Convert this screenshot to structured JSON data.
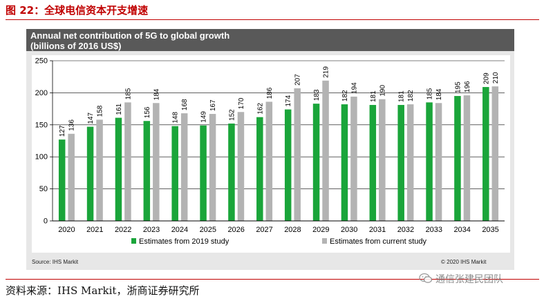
{
  "figure": {
    "title": "图 22：全球电信资本开支增速",
    "source": "资料来源：IHS Markit，浙商证券研究所",
    "watermark": "通信张建民团队"
  },
  "panel": {
    "title_line1": "Annual net contribution of 5G to global growth",
    "title_line2": "(billions of 2016 US$)",
    "source": "Source: IHS Markit",
    "copyright": "© 2020 IHS Markit"
  },
  "colors": {
    "series_2019": "#1aa53a",
    "series_current": "#b3b3b3",
    "header_bg": "#595959",
    "title_red": "#c00000"
  },
  "chart_data": {
    "type": "bar",
    "title": "Annual net contribution of 5G to global growth (billions of 2016 US$)",
    "xlabel": "",
    "ylabel": "",
    "ylim": [
      0,
      250
    ],
    "yticks": [
      0,
      50,
      100,
      150,
      200,
      250
    ],
    "grid": true,
    "legend_position": "bottom",
    "categories": [
      "2020",
      "2021",
      "2022",
      "2023",
      "2024",
      "2025",
      "2026",
      "2027",
      "2028",
      "2029",
      "2030",
      "2031",
      "2032",
      "2033",
      "2034",
      "2035"
    ],
    "series": [
      {
        "name": "Estimates from 2019 study",
        "values": [
          127,
          147,
          161,
          156,
          148,
          149,
          152,
          162,
          174,
          183,
          182,
          181,
          181,
          185,
          195,
          209
        ],
        "labels": [
          "127",
          "147",
          "161",
          "156",
          "148",
          "149",
          "152",
          "162",
          "174",
          "183",
          "182",
          "181",
          "181",
          "185",
          "195",
          "209"
        ]
      },
      {
        "name": "Estimates from current study",
        "values": [
          136,
          158,
          185,
          184,
          168,
          167,
          170,
          186,
          207,
          219,
          194,
          190,
          182,
          184,
          196,
          210
        ],
        "labels": [
          "136",
          "158",
          "185",
          "184",
          "168",
          "167",
          "170",
          "186",
          "207",
          "219",
          "194",
          "190",
          "182",
          "184",
          "196",
          "210"
        ]
      }
    ]
  }
}
